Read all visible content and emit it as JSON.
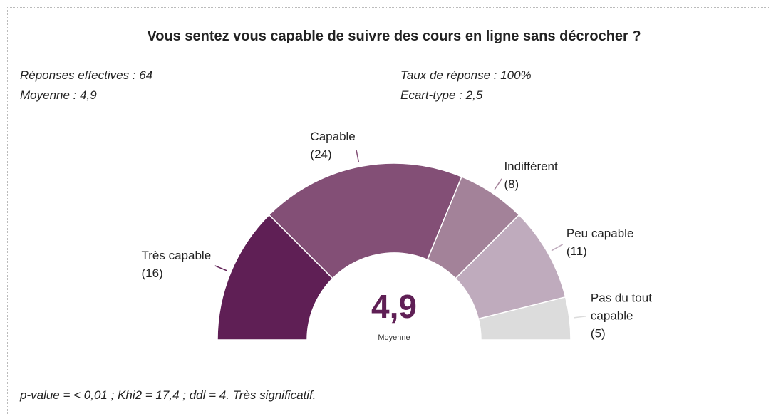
{
  "chart_data": {
    "type": "semi-donut",
    "title": "Vous sentez vous capable de suivre des cours en ligne sans décrocher ?",
    "stats": [
      "Réponses effectives : 64",
      "Taux de réponse : 100%",
      "Moyenne : 4,9",
      "Ecart-type : 2,5"
    ],
    "categories": [
      "Très capable",
      "Capable",
      "Indifférent",
      "Peu capable",
      "Pas du tout capable"
    ],
    "values": [
      16,
      24,
      8,
      11,
      5
    ],
    "value_labels": [
      "(16)",
      "(24)",
      "(8)",
      "(11)",
      "(5)"
    ],
    "colors": [
      "#5f1f55",
      "#834f76",
      "#a38299",
      "#bfabbd",
      "#dcdcdc"
    ],
    "center_label": "4,9",
    "center_caption": "Moyenne",
    "footnote": "p-value = < 0,01 ; Khi2 = 17,4 ; ddl = 4. Très significatif."
  }
}
